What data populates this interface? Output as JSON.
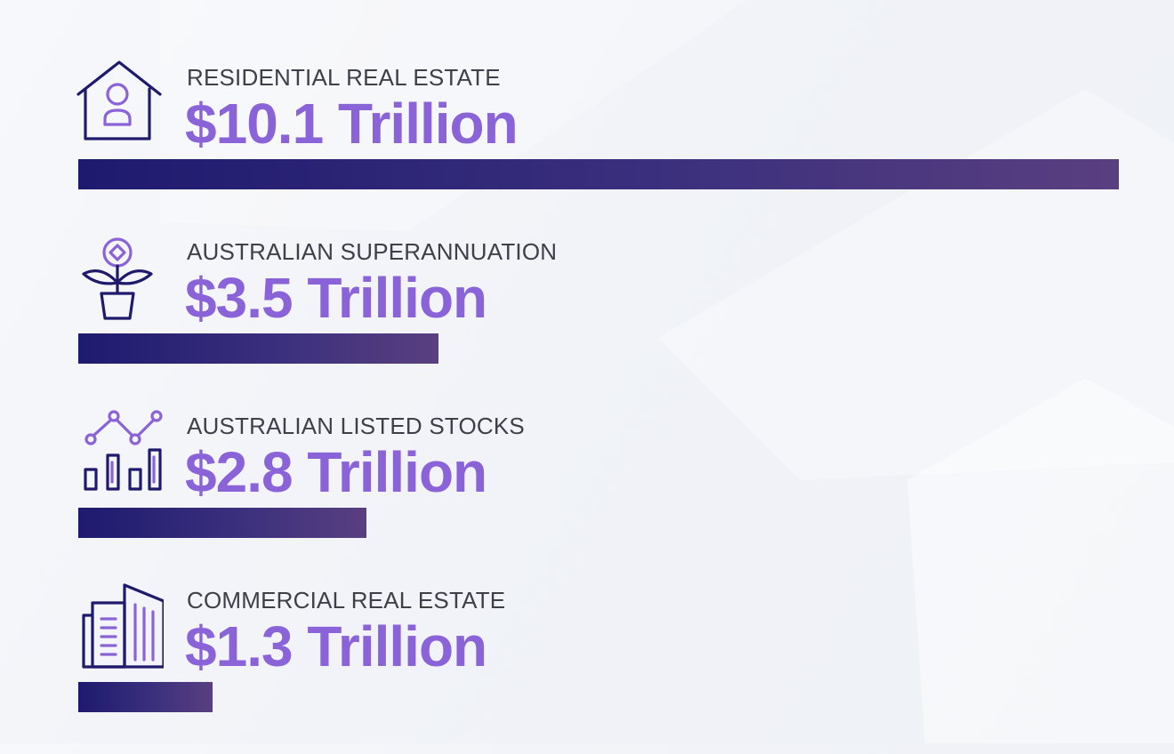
{
  "colors": {
    "label": "#3f3f4a",
    "value": "#8a63d9",
    "icon_dark": "#1f1a6b",
    "icon_accent": "#8a63d9",
    "bar_start": "#1e1a6e",
    "bar_end": "#5a3f80"
  },
  "chart_data": {
    "type": "bar",
    "orientation": "horizontal",
    "categories": [
      "RESIDENTIAL REAL ESTATE",
      "AUSTRALIAN SUPERANNUATION",
      "AUSTRALIAN LISTED STOCKS",
      "COMMERCIAL REAL ESTATE"
    ],
    "values": [
      10.1,
      3.5,
      2.8,
      1.3
    ],
    "value_labels": [
      "$10.1 Trillion",
      "$3.5 Trillion",
      "$2.8 Trillion",
      "$1.3 Trillion"
    ],
    "icons": [
      "house-person-icon",
      "plant-coin-icon",
      "stock-chart-icon",
      "buildings-icon"
    ],
    "xlim": [
      0,
      10.1
    ]
  }
}
